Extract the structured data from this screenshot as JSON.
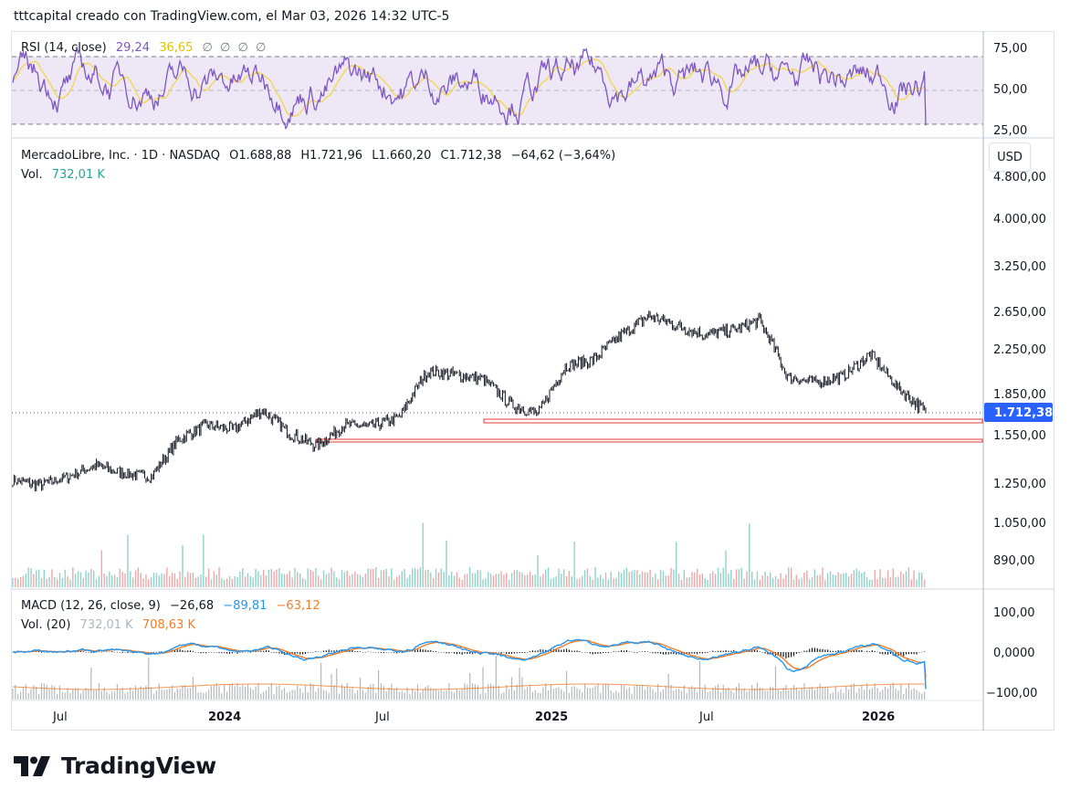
{
  "header": {
    "text": "tttcapital creado con TradingView.com, el Mar 03, 2026 14:32 UTC-5"
  },
  "rsi": {
    "label": "RSI (14, close)",
    "value": "29,24",
    "ma_value": "36,65",
    "extras": [
      "∅",
      "∅",
      "∅",
      "∅"
    ],
    "color_rsi": "#7e57c2",
    "color_ma": "#f5d547"
  },
  "main": {
    "symbol": "MercadoLibre, Inc. · 1D · NASDAQ",
    "open": "O1.688,88",
    "high": "H1.721,96",
    "low": "L1.660,20",
    "close": "C1.712,38",
    "change": "−64,62 (−3,64%)",
    "vol_label": "Vol.",
    "vol_value": "732,01 K",
    "currency": "USD",
    "last_price": "1.712,38"
  },
  "macd": {
    "label": "MACD (12, 26, close, 9)",
    "hist": "−26,68",
    "macd": "−89,81",
    "signal": "−63,12",
    "vol_label": "Vol. (20)",
    "vol_value": "732,01 K",
    "vol_ma": "708,63 K",
    "color_macd": "#2196f3",
    "color_signal": "#f57c24"
  },
  "brand": {
    "name": "TradingView"
  },
  "chart_data": {
    "type": "line",
    "title": "MercadoLibre, Inc. · 1D · NASDAQ",
    "x_ticks": [
      "Jul",
      "2024",
      "Jul",
      "2025",
      "Jul",
      "2026"
    ],
    "price_ticks": [
      "4.000,00",
      "3.250,00",
      "2.650,00",
      "2.250,00",
      "1.850,00",
      "1.550,00",
      "1.250,00",
      "1.050,00",
      "890,00"
    ],
    "rsi_ticks": [
      "75,00",
      "50,00",
      "25,00"
    ],
    "macd_ticks": [
      "100,00",
      "0,0000",
      "−100,00"
    ],
    "price_series": {
      "name": "MercadoLibre, Inc.",
      "x": [
        "2023-06",
        "2023-07",
        "2023-08",
        "2023-09",
        "2023-10",
        "2023-11",
        "2023-12",
        "2024-01",
        "2024-02",
        "2024-03",
        "2024-04",
        "2024-05",
        "2024-06",
        "2024-07",
        "2024-08",
        "2024-09",
        "2024-10",
        "2024-11",
        "2024-12",
        "2025-01",
        "2025-02",
        "2025-03",
        "2025-04",
        "2025-05",
        "2025-06",
        "2025-07",
        "2025-08",
        "2025-09",
        "2025-10",
        "2025-11",
        "2025-12",
        "2026-01",
        "2026-02",
        "2026-03"
      ],
      "y": [
        1270,
        1240,
        1290,
        1360,
        1310,
        1290,
        1520,
        1620,
        1590,
        1730,
        1560,
        1480,
        1620,
        1610,
        1680,
        2050,
        2020,
        1980,
        1770,
        1700,
        2100,
        2150,
        2400,
        2600,
        2500,
        2400,
        2450,
        2550,
        2000,
        1950,
        2000,
        2200,
        1900,
        1712
      ]
    },
    "support_levels": [
      1700,
      1510
    ],
    "last_close": 1712.38
  }
}
